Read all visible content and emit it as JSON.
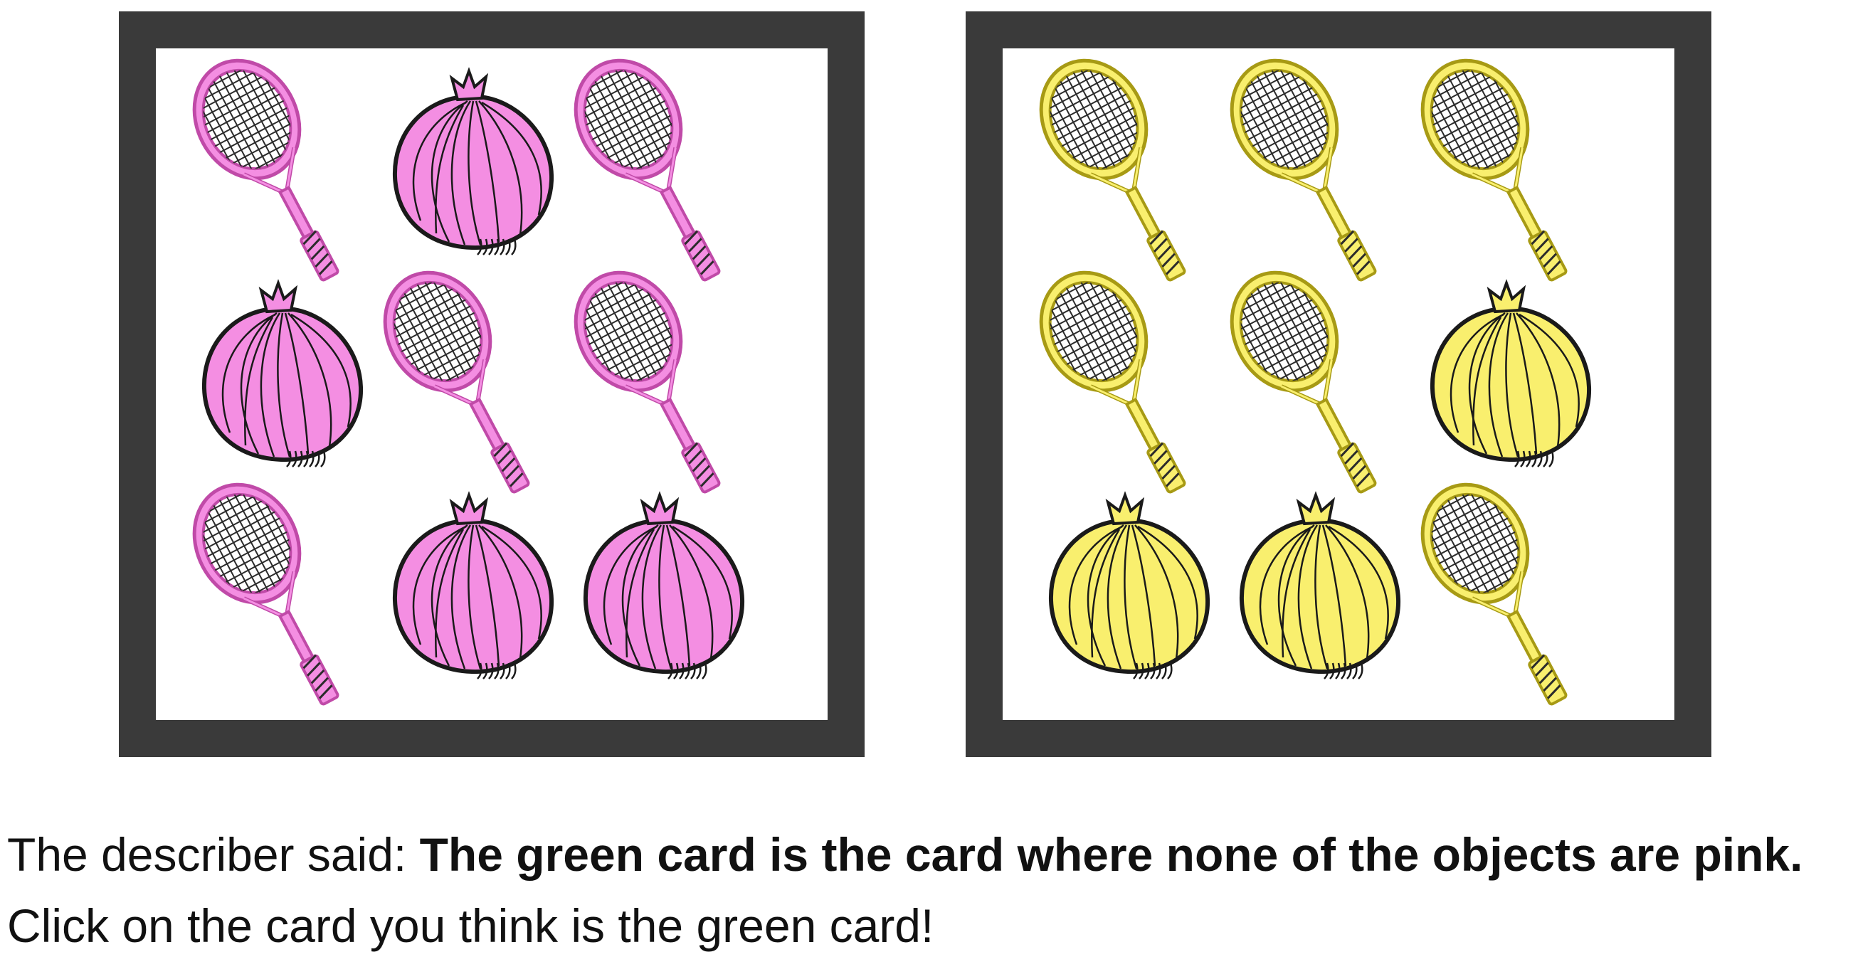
{
  "cards": [
    {
      "id": "card-left",
      "fill": "#f48ee2",
      "stroke": "#c04aa8",
      "objects": [
        "racket",
        "onion",
        "racket",
        "onion",
        "racket",
        "racket",
        "racket",
        "onion",
        "onion"
      ]
    },
    {
      "id": "card-right",
      "fill": "#f9ef6e",
      "stroke": "#a79a14",
      "objects": [
        "racket",
        "racket",
        "racket",
        "racket",
        "racket",
        "onion",
        "onion",
        "onion",
        "racket"
      ]
    }
  ],
  "prompt": {
    "prefix": "The describer said: ",
    "description": "The green card is the card where none of the objects are pink.",
    "instruction": "Click on the card you think is the green card!"
  }
}
